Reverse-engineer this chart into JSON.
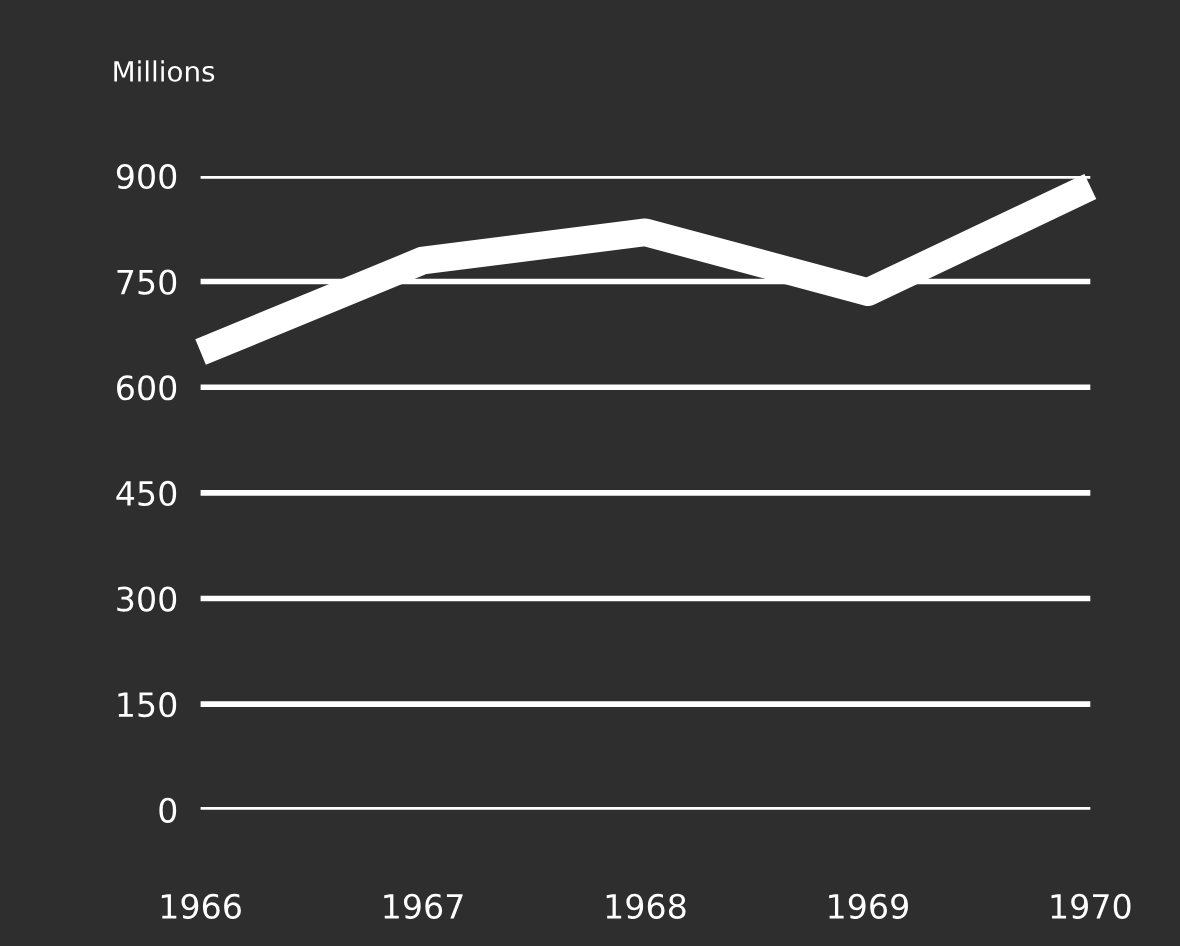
{
  "chart_data": {
    "type": "line",
    "ylabel": "Millions",
    "categories": [
      "1966",
      "1967",
      "1968",
      "1969",
      "1970"
    ],
    "series": [
      {
        "color": "#ffffff",
        "values": [
          650,
          780,
          820,
          735,
          885
        ]
      }
    ],
    "ylim": [
      0,
      900
    ],
    "yticks": [
      0,
      150,
      300,
      450,
      600,
      750,
      900
    ],
    "grid": "y",
    "legend": false,
    "marker": "none",
    "line_style": "solid"
  }
}
